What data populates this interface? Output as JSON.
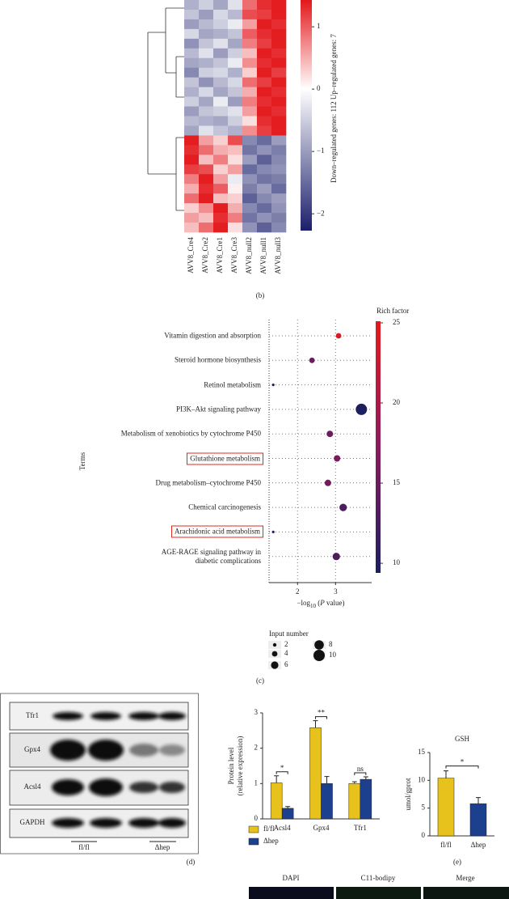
{
  "panels": {
    "b": "(b)",
    "c": "(c)",
    "d": "(d)",
    "e": "(e)"
  },
  "blot": {
    "rows": [
      "Tfr1",
      "Gpx4",
      "Acsl4",
      "GAPDH"
    ],
    "groups": [
      "fl/fl",
      "Δhep"
    ]
  },
  "imaging": {
    "columns": [
      "DAPI",
      "C11-bodipy",
      "Merge"
    ]
  },
  "chart_data": [
    {
      "type": "heatmap",
      "categories": [
        "AVV8_Cre4",
        "AVV8_Cre2",
        "AVV8_Cre1",
        "AVV8_Cre3",
        "AVV8_null2",
        "AVV8_null1",
        "AVV8_null3"
      ],
      "values": [
        [
          -0.8,
          -0.5,
          -0.9,
          -0.3,
          0.9,
          1.3,
          1.4
        ],
        [
          -0.6,
          -1.0,
          -0.4,
          -0.7,
          1.1,
          1.2,
          1.4
        ],
        [
          -1.0,
          -0.7,
          -0.5,
          -0.2,
          0.6,
          1.4,
          1.3
        ],
        [
          -0.4,
          -0.9,
          -0.8,
          -0.6,
          1.0,
          1.3,
          1.4
        ],
        [
          -1.1,
          -0.6,
          -0.3,
          -0.9,
          0.8,
          1.2,
          1.4
        ],
        [
          -0.7,
          -0.3,
          -1.0,
          -0.5,
          0.4,
          1.4,
          1.3
        ],
        [
          -0.9,
          -0.8,
          -0.6,
          -0.2,
          0.7,
          1.3,
          1.4
        ],
        [
          -1.2,
          -0.5,
          -0.4,
          -0.8,
          0.3,
          1.4,
          1.2
        ],
        [
          -0.6,
          -1.1,
          -0.7,
          -0.4,
          0.9,
          1.2,
          1.4
        ],
        [
          -0.8,
          -0.4,
          -0.9,
          -0.6,
          0.5,
          1.4,
          1.3
        ],
        [
          -0.5,
          -0.9,
          -0.2,
          -1.0,
          0.8,
          1.3,
          1.4
        ],
        [
          -1.0,
          -0.6,
          -0.5,
          -0.3,
          0.6,
          1.4,
          1.3
        ],
        [
          -0.7,
          -0.8,
          -0.9,
          -0.5,
          0.2,
          1.3,
          1.4
        ],
        [
          -0.9,
          -0.3,
          -0.6,
          -0.8,
          0.7,
          1.2,
          1.4
        ],
        [
          1.4,
          0.6,
          0.3,
          1.1,
          -1.2,
          -1.5,
          -1.0
        ],
        [
          1.3,
          0.9,
          0.5,
          0.4,
          -1.4,
          -1.1,
          -1.3
        ],
        [
          1.4,
          0.4,
          0.8,
          0.2,
          -1.0,
          -1.6,
          -1.2
        ],
        [
          1.2,
          1.1,
          0.3,
          0.6,
          -1.5,
          -1.2,
          -1.1
        ],
        [
          0.8,
          1.4,
          0.6,
          -0.2,
          -1.1,
          -1.4,
          -1.3
        ],
        [
          0.5,
          1.3,
          1.0,
          0.1,
          -1.3,
          -1.0,
          -1.5
        ],
        [
          0.9,
          1.4,
          0.4,
          0.3,
          -1.6,
          -1.2,
          -1.0
        ],
        [
          0.3,
          0.7,
          1.4,
          0.5,
          -1.2,
          -1.5,
          -1.1
        ],
        [
          0.6,
          0.4,
          1.3,
          0.8,
          -1.4,
          -1.1,
          -1.3
        ],
        [
          0.4,
          0.9,
          1.4,
          0.2,
          -1.1,
          -1.6,
          -1.2
        ]
      ],
      "colors": [
        "#1b1f6b",
        "#ffffff",
        "#e3181c"
      ],
      "clim": [
        -2.27,
        1.43
      ],
      "cticks": [
        1,
        0,
        {
          "value": -1,
          "label": "−1"
        },
        {
          "value": -2,
          "label": "−2"
        }
      ],
      "colorbar_label": "Down–regulated genes: 112 Up–regulated genes: 7"
    },
    {
      "type": "scatter",
      "categories": [
        "Vitamin digestion and absorption",
        "Steroid hormone biosynthesis",
        "Retinol metabolism",
        "PI3K–Akt signaling pathway",
        "Metabolism of xenobiotics by cytochrome P450",
        "Glutathione metabolism",
        "Drug metabolism–cytochrome P450",
        "Chemical carcinogenesis",
        "Arachidonic acid metabolism",
        "AGE-RAGE signaling pathway in\ndiabetic complications"
      ],
      "x": [
        3.08,
        2.38,
        1.36,
        3.68,
        2.85,
        3.04,
        2.8,
        3.2,
        1.36,
        3.02
      ],
      "sizes": [
        4,
        4,
        1,
        10,
        5,
        5,
        5,
        6,
        1,
        6
      ],
      "rich_factor": [
        24,
        15,
        9.8,
        9.6,
        15,
        16,
        15.5,
        13,
        10,
        13
      ],
      "highlight": [
        5,
        8
      ],
      "xlim": [
        1.25,
        3.95
      ],
      "xticks": [
        2,
        3
      ],
      "grid": true,
      "xlabel": [
        "−log",
        "10",
        " (",
        "P",
        " value)"
      ],
      "ylabel": "Terms",
      "colors": [
        "#1b1f5e",
        "#8b1a5e",
        "#e41a1c"
      ],
      "clim": [
        9.4,
        25.1
      ],
      "cticks": [
        25,
        20,
        15,
        10
      ],
      "colorbar_title": "Rich factor",
      "size_legend_title": "Input number",
      "size_legend": [
        2,
        4,
        6,
        8,
        10
      ]
    },
    {
      "type": "bar",
      "categories": [
        "Acsl4",
        "Gpx4",
        "Tfr1"
      ],
      "series": [
        {
          "name": "fl/fl",
          "color": "#e8c21c",
          "values": [
            1.02,
            2.58,
            1.0
          ],
          "errors": [
            0.2,
            0.2,
            0.05
          ]
        },
        {
          "name": "Δhep",
          "color": "#1c3f8e",
          "values": [
            0.3,
            1.0,
            1.12
          ],
          "errors": [
            0.05,
            0.2,
            0.07
          ]
        }
      ],
      "ylim": [
        0,
        3
      ],
      "yticks": [
        0,
        1,
        2,
        3
      ],
      "ylabel": [
        "Protein level",
        "(relative expression)"
      ],
      "significance": [
        "*",
        "**",
        "ns"
      ]
    },
    {
      "type": "bar",
      "title": "GSH",
      "categories": [
        "fl/fl",
        "Δhep"
      ],
      "values": [
        10.4,
        5.8
      ],
      "errors": [
        1.3,
        1.1
      ],
      "colors": [
        "#e8c21c",
        "#1c3f8e"
      ],
      "ylim": [
        0,
        15
      ],
      "yticks": [
        0,
        5,
        10,
        15
      ],
      "ylabel": [
        "umol/gprot"
      ],
      "significance": [
        "*"
      ]
    }
  ]
}
